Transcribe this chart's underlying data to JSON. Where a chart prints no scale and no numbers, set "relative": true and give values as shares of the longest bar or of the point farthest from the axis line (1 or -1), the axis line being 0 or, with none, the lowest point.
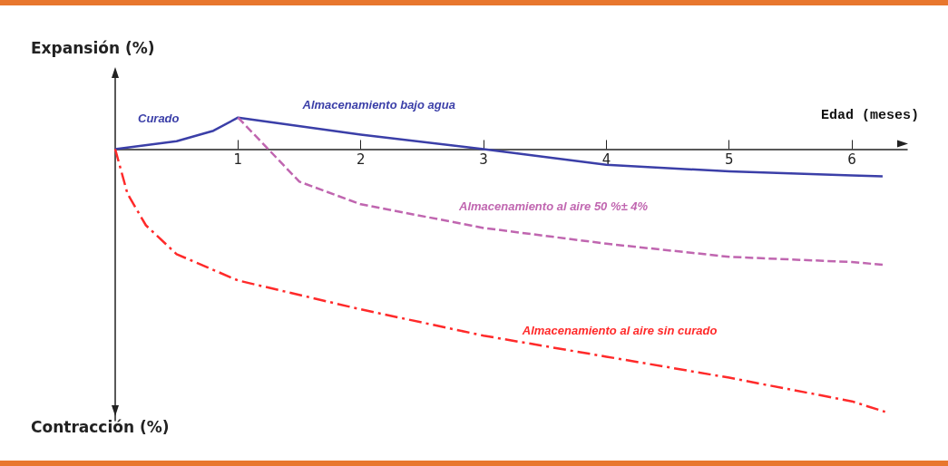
{
  "chart_data": {
    "type": "line",
    "relative": true,
    "xlabel": "Edad (meses)",
    "ylabel": "Expansión (%)",
    "xlim": [
      0,
      6.45
    ],
    "xticks": [
      1,
      2,
      3,
      4,
      5,
      6
    ],
    "grid": false,
    "marker": "none",
    "annotations": [
      "Curado",
      "Contracción (%)"
    ],
    "series": [
      {
        "name": "Almacenamiento bajo agua",
        "color": "#3b3fa8",
        "line_style": "solid",
        "x": [
          0,
          0.5,
          0.8,
          1,
          2,
          3,
          4,
          5,
          6,
          6.25
        ],
        "values": [
          0,
          0.03,
          0.07,
          0.12,
          0.055,
          0,
          -0.06,
          -0.085,
          -0.1,
          -0.104
        ]
      },
      {
        "name": "Almacenamiento al aire 50 %± 4%",
        "color": "#c066b0",
        "line_style": "dashed",
        "x": [
          1,
          1.5,
          2,
          3,
          4,
          5,
          6,
          6.25
        ],
        "values": [
          0.12,
          -0.124,
          -0.21,
          -0.3,
          -0.36,
          -0.41,
          -0.43,
          -0.44
        ]
      },
      {
        "name": "Almacenamiento al aire sin curado",
        "color": "#ff2a2a",
        "line_style": "dashdot",
        "x": [
          0,
          0.1,
          0.25,
          0.5,
          1,
          2,
          3,
          4,
          5,
          6,
          6.27
        ],
        "values": [
          0,
          -0.17,
          -0.29,
          -0.4,
          -0.5,
          -0.61,
          -0.71,
          -0.79,
          -0.87,
          -0.96,
          -1
        ]
      }
    ]
  }
}
